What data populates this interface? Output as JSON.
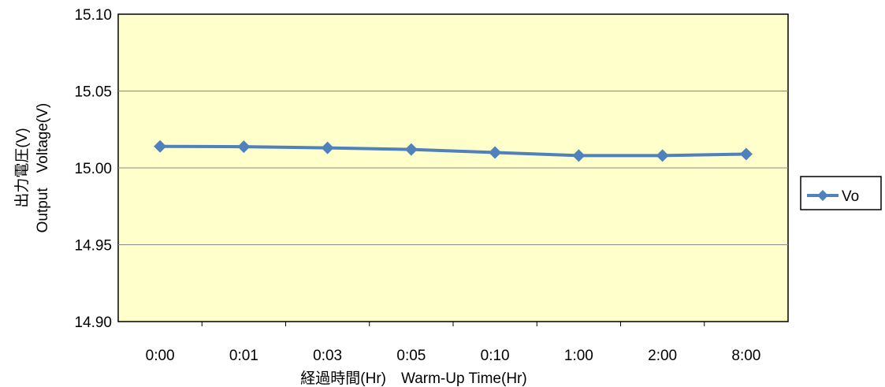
{
  "chart_data": {
    "type": "line",
    "categories": [
      "0:00",
      "0:01",
      "0:03",
      "0:05",
      "0:10",
      "1:00",
      "2:00",
      "8:00"
    ],
    "series": [
      {
        "name": "Vo",
        "values": [
          15.014,
          15.0138,
          15.013,
          15.012,
          15.01,
          15.008,
          15.008,
          15.009
        ]
      }
    ],
    "ylim": [
      14.9,
      15.1
    ],
    "yticks": [
      "15.10",
      "15.05",
      "15.00",
      "14.95",
      "14.90"
    ],
    "xlabel": "経過時間(Hr)　Warm-Up Time(Hr)",
    "ylabel_line1": "出力電圧(V)",
    "ylabel_line2": "Output　Voltage(V)",
    "grid": true,
    "legend": "right",
    "colors": {
      "plot_bg": "#FFFFCC",
      "series": "#4F81BD",
      "grid": "#888888"
    }
  }
}
